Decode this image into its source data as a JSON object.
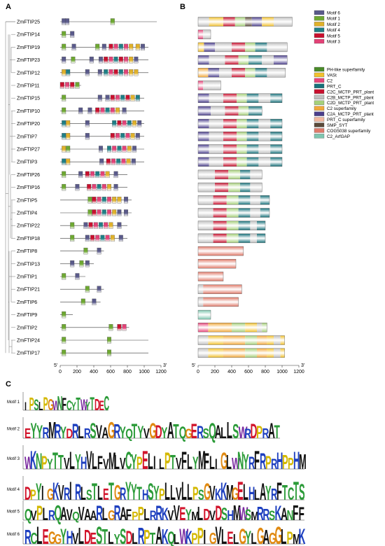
{
  "panels": {
    "a": "A",
    "b": "B",
    "c": "C"
  },
  "genes": [
    "ZmFTIP25",
    "ZmFTIP14",
    "ZmFTIP19",
    "ZmFTIP23",
    "ZmFTIP12",
    "ZmFTIP11",
    "ZmFTIP15",
    "ZmFTIP10",
    "ZmFTIP20",
    "ZmFTIP7",
    "ZmFTIP27",
    "ZmFTIP3",
    "ZmFTIP26",
    "ZmFTIP16",
    "ZmFTIP5",
    "ZmFTIP4",
    "ZmFTIP22",
    "ZmFTIP18",
    "ZmFTIP8",
    "ZmFTIP13",
    "ZmFTIP1",
    "ZmFTIP21",
    "ZmFTIP6",
    "ZmFTIP9",
    "ZmFTIP2",
    "ZmFTIP24",
    "ZmFTIP17"
  ],
  "axis": {
    "start_label": "5'",
    "end_label": "3'",
    "ticks": [
      "0",
      "200",
      "400",
      "600",
      "800",
      "1000",
      "1200"
    ],
    "max": 1200
  },
  "motif_legend": [
    {
      "name": "Motif 6",
      "color": "#5a5a8a"
    },
    {
      "name": "Motif 1",
      "color": "#6ea832"
    },
    {
      "name": "Motif 2",
      "color": "#e0b12a"
    },
    {
      "name": "Motif 4",
      "color": "#1f7f86"
    },
    {
      "name": "Motif 5",
      "color": "#c8102e"
    },
    {
      "name": "Motif 3",
      "color": "#e34277"
    }
  ],
  "domain_legend": [
    {
      "name": "PH-like superfamily",
      "color": "#4a8c2a"
    },
    {
      "name": "VASt",
      "color": "#f2c12e"
    },
    {
      "name": "C2",
      "color": "#e8457a"
    },
    {
      "name": "PRT_C",
      "color": "#17717a"
    },
    {
      "name": "C2C_MCTP_PRT_plant",
      "color": "#c8102e"
    },
    {
      "name": "C2B_MCTP_PRT_plant",
      "color": "#c0c0c0"
    },
    {
      "name": "C2D_MCTP_PRT_plant",
      "color": "#a6d07a"
    },
    {
      "name": "C2 superfamily",
      "color": "#f2a93b"
    },
    {
      "name": "C2A_MCTP_PRT_plant",
      "color": "#4b3f8c"
    },
    {
      "name": "PRT_C superfamily",
      "color": "#f3b8a0"
    },
    {
      "name": "SMP_SYT",
      "color": "#5b4a3a"
    },
    {
      "name": "COG5038 superfamily",
      "color": "#e07a6a"
    },
    {
      "name": "C2_ArfGAP",
      "color": "#7fc7b0"
    }
  ],
  "motif_logos": [
    {
      "label": "Motif 1",
      "sequence": "IPSLPGWNFCYTWYTDEC"
    },
    {
      "label": "Motif 2",
      "sequence": "EYYRMRYDRLRSVAGRYQTYVGDYATQGERSQALLSWRDPRAT"
    },
    {
      "label": "Motif 3",
      "sequence": "WKNPYTTVLYHVLFVMLVCYPELILPTVFLYMFLIGLWNYRFRPRHPPHM"
    },
    {
      "label": "Motif 4",
      "sequence": "DPYIGKVRIRLSTLETGRYYTHSYPLLVLLPSGVKKMGELHLAYRFTCTS"
    },
    {
      "label": "Motif 5",
      "sequence": "QVPLRQAVQVAARLGRAFPPLRRKVVEYMLDVDSHMWSMRRSKANFF"
    },
    {
      "label": "Motif 6",
      "sequence": "RCLEGGYHVLDESTLYSDLRPTAKQLWKPPIGVLELGYLGAGGLPMK"
    }
  ]
}
